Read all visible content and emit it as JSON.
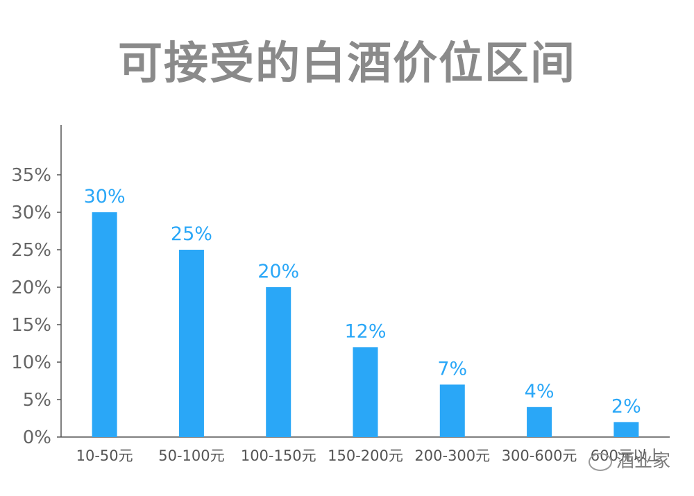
{
  "chart_data": {
    "type": "bar",
    "title": "可接受的白酒价位区间",
    "categories": [
      "10-50元",
      "50-100元",
      "100-150元",
      "150-200元",
      "200-300元",
      "300-600元",
      "600元以上"
    ],
    "values": [
      30,
      25,
      20,
      12,
      7,
      4,
      2
    ],
    "data_labels": [
      "30%",
      "25%",
      "20%",
      "12%",
      "7%",
      "4%",
      "2%"
    ],
    "ylim": [
      0,
      40
    ],
    "yticks": [
      0,
      5,
      10,
      15,
      20,
      25,
      30,
      35
    ],
    "ytick_labels": [
      "0%",
      "5%",
      "10%",
      "15%",
      "20%",
      "25%",
      "30%",
      "35%"
    ],
    "grid": false,
    "bar_color": "#2aa7f7"
  },
  "watermark": {
    "text": "酒业家",
    "icon": "wechat-icon"
  }
}
